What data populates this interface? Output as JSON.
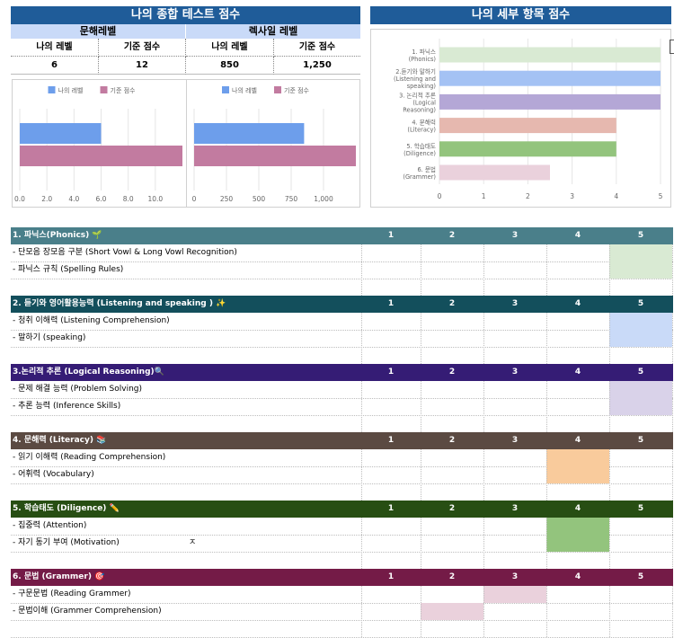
{
  "summary": {
    "title": "나의 종합 테스트 점수",
    "groups": [
      {
        "name": "문해레벨",
        "headers": [
          "나의 레벨",
          "기준 점수"
        ],
        "values": [
          "6",
          "12"
        ]
      },
      {
        "name": "렉사일 레벨",
        "headers": [
          "나의 레벨",
          "기준 점수"
        ],
        "values": [
          "850",
          "1,250"
        ]
      }
    ]
  },
  "detail": {
    "title": "나의 세부 항목 점수"
  },
  "chart_data": [
    {
      "type": "bar",
      "orientation": "horizontal",
      "legend": [
        "나의 레벨",
        "기준 점수"
      ],
      "legend_position": "top",
      "series": [
        {
          "name": "나의 레벨",
          "values": [
            6
          ]
        },
        {
          "name": "기준 점수",
          "values": [
            12
          ]
        }
      ],
      "xlim": [
        0,
        12
      ],
      "ticks": [
        "0.0",
        "2.0",
        "4.0",
        "6.0",
        "8.0",
        "10.0"
      ],
      "colors": [
        "#6d9eeb",
        "#c27ba0"
      ]
    },
    {
      "type": "bar",
      "orientation": "horizontal",
      "legend": [
        "나의 레벨",
        "기준 점수"
      ],
      "legend_position": "top",
      "series": [
        {
          "name": "나의 레벨",
          "values": [
            850
          ]
        },
        {
          "name": "기준 점수",
          "values": [
            1250
          ]
        }
      ],
      "xlim": [
        0,
        1250
      ],
      "ticks": [
        "0",
        "250",
        "500",
        "750",
        "1,000"
      ],
      "colors": [
        "#6d9eeb",
        "#c27ba0"
      ]
    },
    {
      "type": "bar",
      "orientation": "horizontal",
      "categories": [
        [
          "1. 파닉스",
          "(Phonics)"
        ],
        [
          "2.듣기와 말하기",
          "(Listening and",
          "speaking)"
        ],
        [
          "3. 논리적 추론",
          "(Logical",
          "Reasoning)"
        ],
        [
          "4. 문해력",
          "(Literacy)"
        ],
        [
          "5. 학습태도",
          "(Diligence)"
        ],
        [
          "6. 문법",
          "(Grammer)"
        ]
      ],
      "values": [
        5,
        5,
        5,
        4,
        4,
        2.5
      ],
      "colors": [
        "#d9ead3",
        "#a4c2f4",
        "#b4a7d6",
        "#e6b8af",
        "#93c47d",
        "#ead1dc"
      ],
      "xlim": [
        0,
        5
      ],
      "ticks": [
        "0",
        "1",
        "2",
        "3",
        "4",
        "5"
      ]
    }
  ],
  "sections": [
    {
      "title": "1. 파닉스(Phonics) 🌱",
      "color": "#4a7f8a",
      "fill": "#d9ead3",
      "score_labels": [
        "1",
        "2",
        "3",
        "4",
        "5"
      ],
      "items": [
        {
          "label": "- 단모음 장모음 구분 (Short Vowl & Long Vowl Recognition)",
          "score": 5
        },
        {
          "label": "- 파닉스 규칙 (Spelling Rules)",
          "score": 5
        }
      ]
    },
    {
      "title": "2. 듣기와 영어활용능력 (Listening and speaking ) ✨",
      "color": "#134f5c",
      "fill": "#c9daf8",
      "score_labels": [
        "1",
        "2",
        "3",
        "4",
        "5"
      ],
      "items": [
        {
          "label": "- 청취 이해력 (Listening Comprehension)",
          "score": 5
        },
        {
          "label": "- 말하기 (speaking)",
          "score": 5
        }
      ]
    },
    {
      "title": "3.논리적 추론 (Logical Reasoning)🔍",
      "color": "#351c75",
      "fill": "#d9d2e9",
      "score_labels": [
        "1",
        "2",
        "3",
        "4",
        "5"
      ],
      "items": [
        {
          "label": "- 문제 해결 능력 (Problem Solving)",
          "score": 5
        },
        {
          "label": "- 추론 능력 (Inference Skills)",
          "score": 5
        }
      ]
    },
    {
      "title": "4. 문해력 (Literacy) 📚",
      "color": "#5b4a42",
      "fill": "#f9cb9c",
      "score_labels": [
        "1",
        "2",
        "3",
        "4",
        "5"
      ],
      "items": [
        {
          "label": "- 읽기 이해력 (Reading Comprehension)",
          "score": 4
        },
        {
          "label": "- 어휘력 (Vocabulary)",
          "score": 4
        }
      ]
    },
    {
      "title": "5. 학습태도 (Diligence) ✏️",
      "color": "#274e13",
      "fill": "#93c47d",
      "score_labels": [
        "1",
        "2",
        "3",
        "4",
        "5"
      ],
      "items": [
        {
          "label": "- 집중력 (Attention)",
          "score": 4
        },
        {
          "label": "- 자기 동기 부여 (Motivation)",
          "score": 4,
          "note": "ㅈ"
        }
      ]
    },
    {
      "title": "6. 문법 (Grammer) 🎯",
      "color": "#741b47",
      "fill": "#ead1dc",
      "score_labels": [
        "1",
        "2",
        "3",
        "4",
        "5"
      ],
      "items": [
        {
          "label": "- 구문문법 (Reading Grammer)",
          "score": 3
        },
        {
          "label": "- 문법이해 (Grammer Comprehension)",
          "score": 2
        }
      ]
    }
  ]
}
